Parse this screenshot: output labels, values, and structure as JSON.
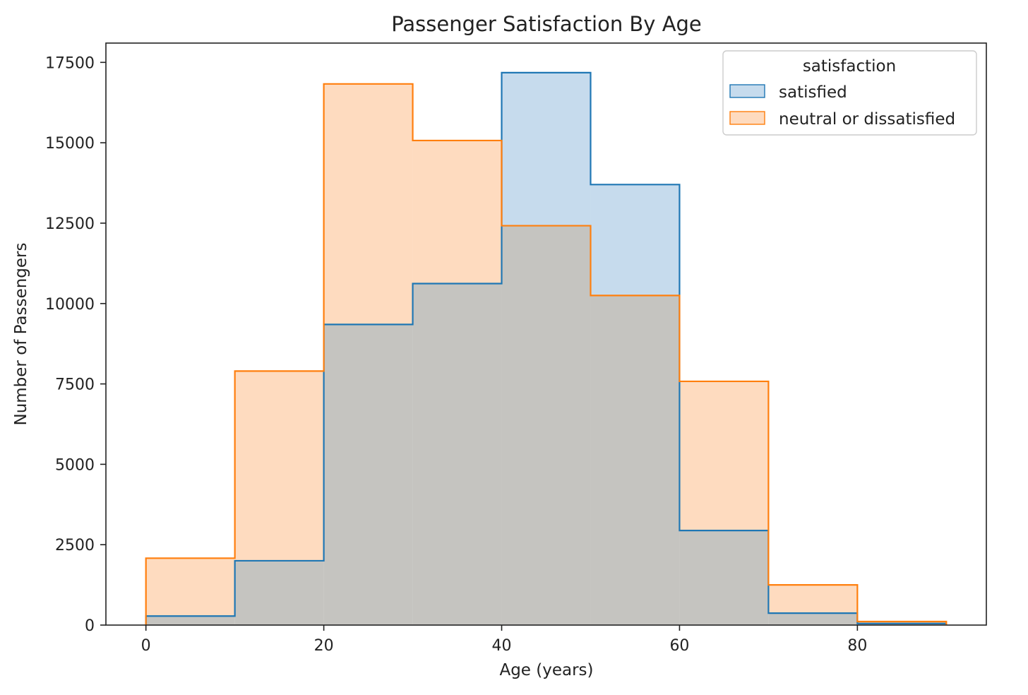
{
  "chart_data": {
    "type": "histogram",
    "title": "Passenger Satisfaction By Age",
    "xlabel": "Age (years)",
    "ylabel": "Number of Passengers",
    "bin_edges": [
      0,
      10,
      20,
      30,
      40,
      50,
      60,
      70,
      80,
      90
    ],
    "xlim": [
      -4.5,
      94.5
    ],
    "ylim": [
      0,
      18100
    ],
    "xticks": [
      0,
      20,
      40,
      60,
      80
    ],
    "yticks": [
      0,
      2500,
      5000,
      7500,
      10000,
      12500,
      15000,
      17500
    ],
    "grid": false,
    "legend": {
      "title": "satisfaction",
      "placement": "upper-right"
    },
    "series": [
      {
        "name": "satisfied",
        "color": "#1f77b4",
        "fill": "#c6dbed",
        "values": [
          280,
          2000,
          9350,
          10620,
          17180,
          13700,
          2940,
          370,
          50
        ]
      },
      {
        "name": "neutral or dissatisfied",
        "color": "#ff7f0e",
        "fill": "#fedbbf",
        "values": [
          2080,
          7900,
          16830,
          15070,
          12420,
          10250,
          7580,
          1250,
          110
        ]
      }
    ],
    "overlap_fill": "#c5c4c0"
  }
}
